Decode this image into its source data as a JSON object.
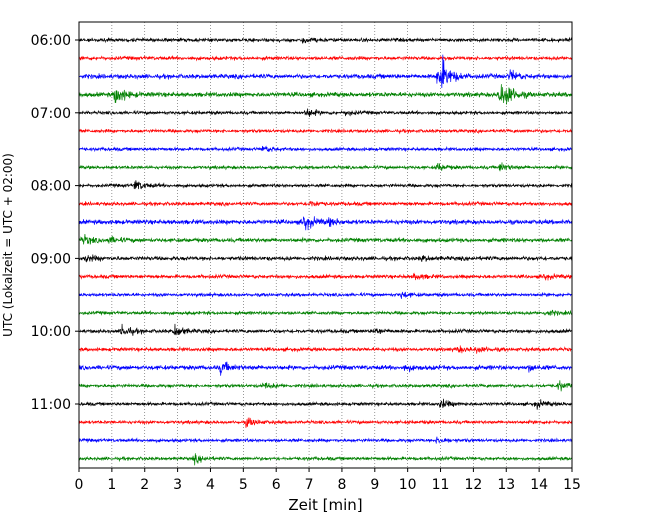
{
  "chart_data": {
    "type": "line",
    "title": "",
    "xlabel": "Zeit  [min]",
    "ylabel": "UTC (Lokalzeit = UTC + 02:00)",
    "xlim": [
      0,
      15
    ],
    "x_ticks": [
      "0",
      "1",
      "2",
      "3",
      "4",
      "5",
      "6",
      "7",
      "8",
      "9",
      "10",
      "11",
      "12",
      "13",
      "14",
      "15"
    ],
    "y_ticks": [
      "06:00",
      "07:00",
      "08:00",
      "09:00",
      "10:00",
      "11:00"
    ],
    "grid": "vertical dotted at each minute",
    "colors": [
      "#000000",
      "#ff0000",
      "#0000ff",
      "#008000"
    ],
    "rows_per_hour": 4,
    "start_time": "06:00",
    "series": [
      {
        "time": "06:00",
        "color": "#000000",
        "amplitude": 0.22,
        "events": [
          {
            "x": 6.8,
            "a": 0.3
          }
        ]
      },
      {
        "time": "06:15",
        "color": "#ff0000",
        "amplitude": 0.22,
        "events": []
      },
      {
        "time": "06:30",
        "color": "#0000ff",
        "amplitude": 0.28,
        "events": [
          {
            "x": 11.0,
            "a": 1.8
          },
          {
            "x": 10.9,
            "a": 0.9
          },
          {
            "x": 13.1,
            "a": 0.7
          }
        ]
      },
      {
        "time": "06:45",
        "color": "#008000",
        "amplitude": 0.28,
        "events": [
          {
            "x": 1.1,
            "a": 1.3
          },
          {
            "x": 12.8,
            "a": 1.6
          },
          {
            "x": 13.0,
            "a": 0.8
          }
        ]
      },
      {
        "time": "07:00",
        "color": "#000000",
        "amplitude": 0.2,
        "events": [
          {
            "x": 6.9,
            "a": 0.6
          },
          {
            "x": 8.1,
            "a": 0.3
          }
        ]
      },
      {
        "time": "07:15",
        "color": "#ff0000",
        "amplitude": 0.2,
        "events": []
      },
      {
        "time": "07:30",
        "color": "#0000ff",
        "amplitude": 0.2,
        "events": [
          {
            "x": 5.6,
            "a": 0.4
          }
        ]
      },
      {
        "time": "07:45",
        "color": "#008000",
        "amplitude": 0.2,
        "events": [
          {
            "x": 10.9,
            "a": 0.5
          },
          {
            "x": 12.8,
            "a": 0.6
          }
        ]
      },
      {
        "time": "08:00",
        "color": "#000000",
        "amplitude": 0.2,
        "events": [
          {
            "x": 1.7,
            "a": 0.7
          }
        ]
      },
      {
        "time": "08:15",
        "color": "#ff0000",
        "amplitude": 0.22,
        "events": [
          {
            "x": 7.0,
            "a": 0.4
          }
        ]
      },
      {
        "time": "08:30",
        "color": "#0000ff",
        "amplitude": 0.28,
        "events": [
          {
            "x": 6.8,
            "a": 1.2
          },
          {
            "x": 7.6,
            "a": 0.4
          }
        ]
      },
      {
        "time": "08:45",
        "color": "#008000",
        "amplitude": 0.25,
        "events": [
          {
            "x": 0.1,
            "a": 0.6
          },
          {
            "x": 0.9,
            "a": 0.4
          }
        ]
      },
      {
        "time": "09:00",
        "color": "#000000",
        "amplitude": 0.25,
        "events": [
          {
            "x": 0.2,
            "a": 0.4
          },
          {
            "x": 10.4,
            "a": 0.3
          }
        ]
      },
      {
        "time": "09:15",
        "color": "#ff0000",
        "amplitude": 0.22,
        "events": [
          {
            "x": 10.2,
            "a": 0.4
          },
          {
            "x": 14.1,
            "a": 0.4
          }
        ]
      },
      {
        "time": "09:30",
        "color": "#0000ff",
        "amplitude": 0.2,
        "events": [
          {
            "x": 9.8,
            "a": 0.4
          }
        ]
      },
      {
        "time": "09:45",
        "color": "#008000",
        "amplitude": 0.2,
        "events": [
          {
            "x": 14.2,
            "a": 0.4
          }
        ]
      },
      {
        "time": "10:00",
        "color": "#000000",
        "amplitude": 0.22,
        "events": [
          {
            "x": 1.3,
            "a": 0.8
          },
          {
            "x": 2.9,
            "a": 0.8
          },
          {
            "x": 9.0,
            "a": 0.4
          }
        ]
      },
      {
        "time": "10:15",
        "color": "#ff0000",
        "amplitude": 0.22,
        "events": [
          {
            "x": 11.5,
            "a": 0.4
          },
          {
            "x": 12.1,
            "a": 0.4
          }
        ]
      },
      {
        "time": "10:30",
        "color": "#0000ff",
        "amplitude": 0.28,
        "events": [
          {
            "x": 4.3,
            "a": 0.8
          },
          {
            "x": 9.9,
            "a": 0.4
          },
          {
            "x": 13.7,
            "a": 0.4
          }
        ]
      },
      {
        "time": "10:45",
        "color": "#008000",
        "amplitude": 0.2,
        "events": [
          {
            "x": 5.6,
            "a": 0.4
          },
          {
            "x": 14.6,
            "a": 0.6
          }
        ]
      },
      {
        "time": "11:00",
        "color": "#000000",
        "amplitude": 0.2,
        "events": [
          {
            "x": 11.0,
            "a": 0.6
          },
          {
            "x": 13.9,
            "a": 0.5
          }
        ]
      },
      {
        "time": "11:15",
        "color": "#ff0000",
        "amplitude": 0.2,
        "events": [
          {
            "x": 5.1,
            "a": 0.6
          }
        ]
      },
      {
        "time": "11:30",
        "color": "#0000ff",
        "amplitude": 0.2,
        "events": [
          {
            "x": 10.9,
            "a": 0.4
          }
        ]
      },
      {
        "time": "11:45",
        "color": "#008000",
        "amplitude": 0.2,
        "events": [
          {
            "x": 3.5,
            "a": 0.5
          }
        ]
      }
    ]
  }
}
